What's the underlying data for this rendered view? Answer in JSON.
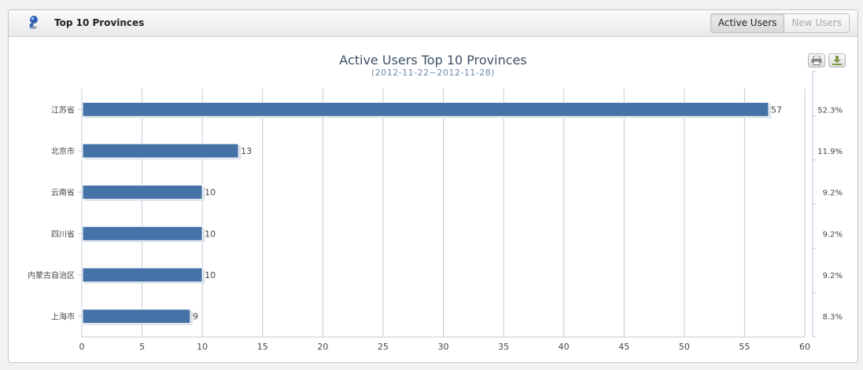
{
  "panel": {
    "title": "Top 10 Provinces",
    "icon": "pushpin-icon",
    "tabs": [
      {
        "label": "Active Users",
        "active": true
      },
      {
        "label": "New Users",
        "active": false
      }
    ]
  },
  "toolbar": {
    "print_icon": "print-icon",
    "download_icon": "download-icon"
  },
  "colors": {
    "bar": "#4572a7",
    "grid": "#c0ccd9",
    "text": "#333333"
  },
  "chart_data": {
    "type": "bar",
    "orientation": "horizontal",
    "title": "Active Users Top 10 Provinces",
    "subtitle": "(2012-11-22~2012-11-28)",
    "categories": [
      "江苏省",
      "北京市",
      "云南省",
      "四川省",
      "内蒙古自治区",
      "上海市"
    ],
    "values": [
      57,
      13,
      10,
      10,
      10,
      9
    ],
    "percentages": [
      "52.3%",
      "11.9%",
      "9.2%",
      "9.2%",
      "9.2%",
      "8.3%"
    ],
    "xlim": [
      0,
      60
    ],
    "xticks": [
      0,
      5,
      10,
      15,
      20,
      25,
      30,
      35,
      40,
      45,
      50,
      55,
      60
    ],
    "grid": true,
    "legend": "none"
  }
}
